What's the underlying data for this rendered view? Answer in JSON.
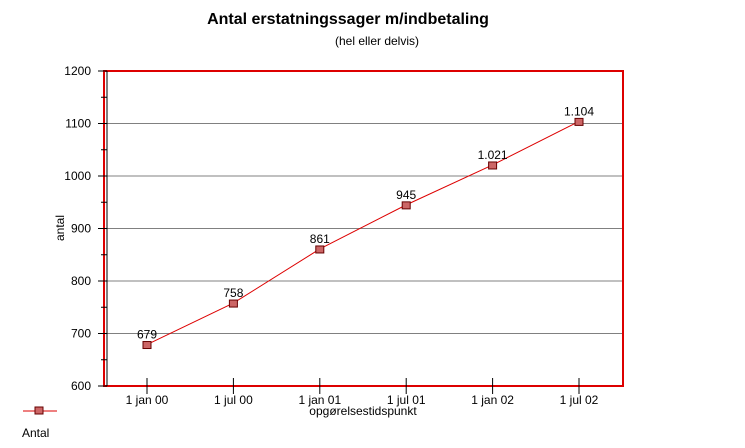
{
  "chart_data": {
    "type": "line",
    "title": "Antal erstatningssager m/indbetaling",
    "subtitle": "(hel eller delvis)",
    "xlabel": "opgørelsestidspunkt",
    "ylabel": "antal",
    "categories": [
      "1 jan 00",
      "1 jul 00",
      "1 jan 01",
      "1 jul 01",
      "1 jan 02",
      "1 jul 02"
    ],
    "series": [
      {
        "name": "Antal",
        "values": [
          679,
          758,
          861,
          945,
          1021,
          1104
        ],
        "labels": [
          "679",
          "758",
          "861",
          "945",
          "1.021",
          "1.104"
        ]
      }
    ],
    "ylim": [
      600,
      1200
    ],
    "yticks": [
      600,
      700,
      800,
      900,
      1000,
      1100,
      1200
    ],
    "yminor_step": 50,
    "grid": true,
    "legend_position": "bottom-left",
    "colors": {
      "frame": "#dd0000",
      "line": "#dd0000",
      "marker_fill": "#cc6666",
      "marker_stroke": "#660000",
      "grid": "#808080",
      "axis": "#000000"
    }
  }
}
